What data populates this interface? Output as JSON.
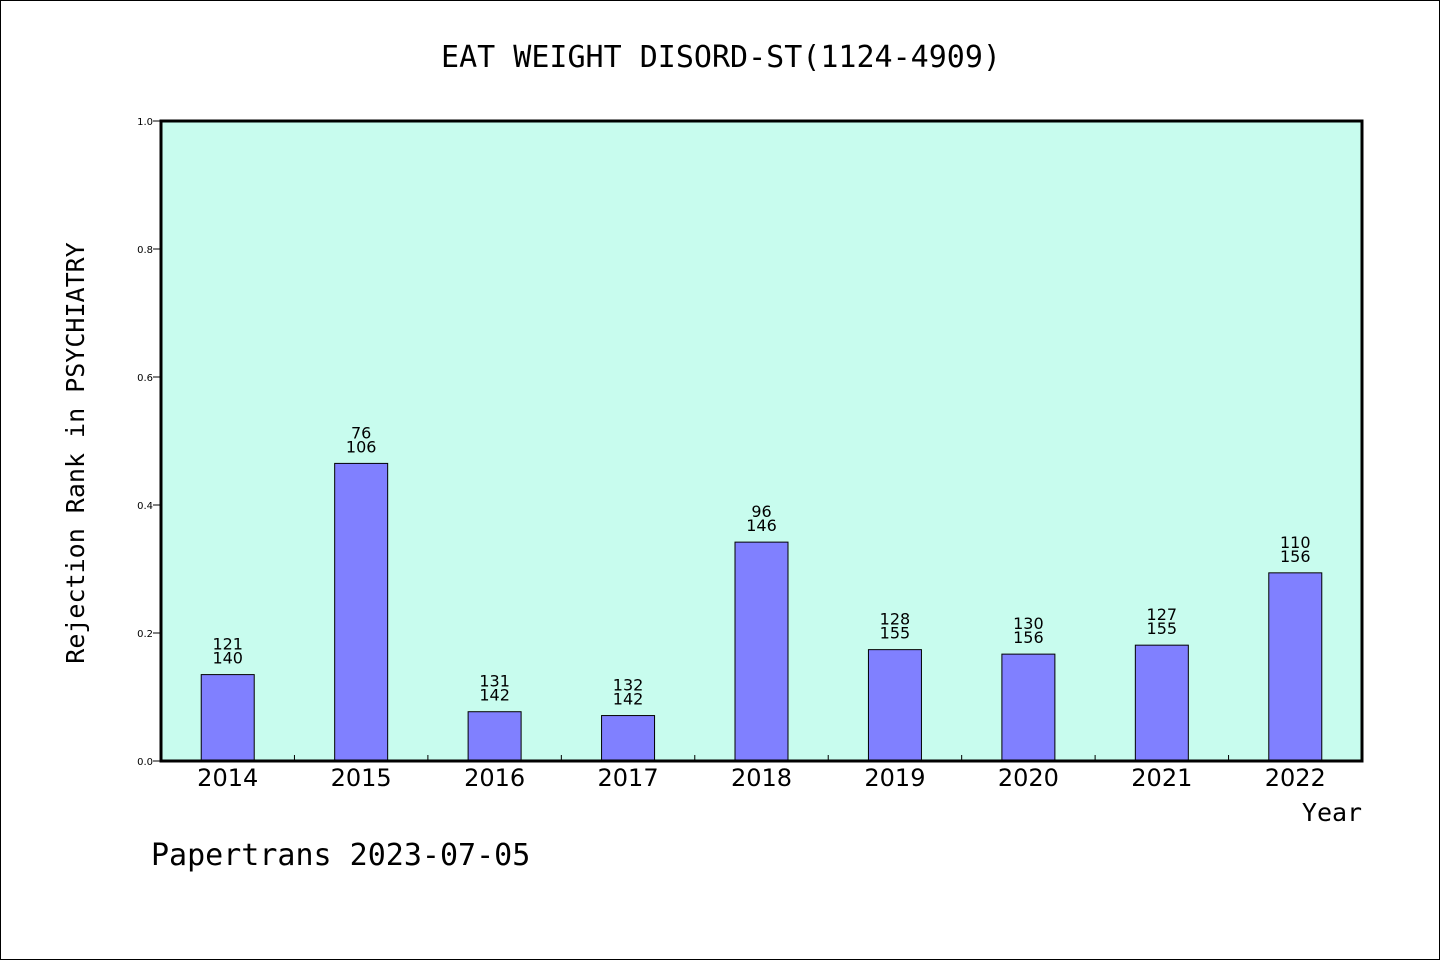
{
  "chart_data": {
    "type": "bar",
    "title": "EAT WEIGHT DISORD-ST(1124-4909)",
    "xlabel": "Year",
    "ylabel": "Rejection Rank in PSYCHIATRY",
    "ylim": [
      0,
      1.0
    ],
    "yticks": [
      "0.0",
      "0.2",
      "0.4",
      "0.6",
      "0.8",
      "1.0"
    ],
    "categories": [
      "2014",
      "2015",
      "2016",
      "2017",
      "2018",
      "2019",
      "2020",
      "2021",
      "2022"
    ],
    "values": [
      0.135,
      0.465,
      0.077,
      0.071,
      0.342,
      0.174,
      0.167,
      0.181,
      0.294
    ],
    "labels_top": [
      "121",
      "76",
      "131",
      "132",
      "96",
      "128",
      "130",
      "127",
      "110"
    ],
    "labels_bottom": [
      "140",
      "106",
      "142",
      "142",
      "146",
      "155",
      "156",
      "155",
      "156"
    ],
    "grid": false,
    "colors": {
      "plot_background": "#c8fcee",
      "bar_fill": "#8080ff",
      "bar_stroke": "#000000"
    }
  },
  "footer": {
    "text": "Papertrans 2023-07-05"
  }
}
